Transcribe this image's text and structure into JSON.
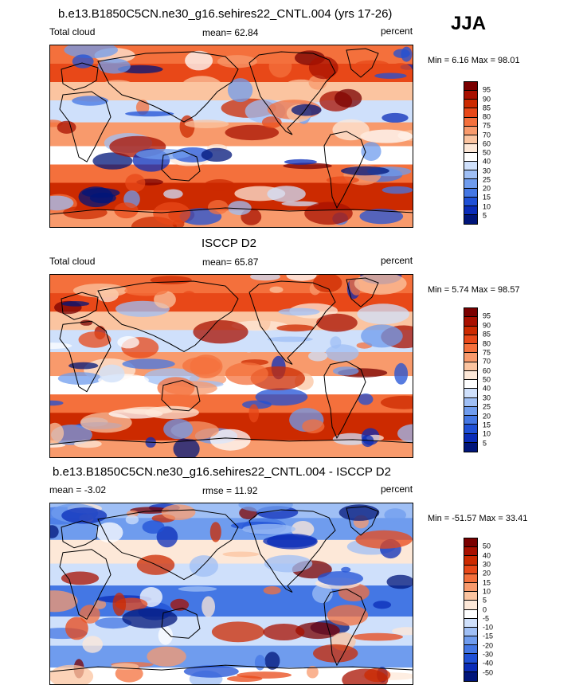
{
  "season": "JJA",
  "panels": [
    {
      "title": "b.e13.B1850C5CN.ne30_g16.sehires22_CNTL.004 (yrs 17-26)",
      "left_label": "Total cloud",
      "center_label": "mean=  62.84",
      "right_label": "percent",
      "minmax": "Min =   6.16 Max =  98.01",
      "map_type": "absolute"
    },
    {
      "title": "ISCCP D2",
      "left_label": "Total cloud",
      "center_label": "mean=  65.87",
      "right_label": "percent",
      "minmax": "Min =   5.74 Max =  98.57",
      "map_type": "absolute"
    },
    {
      "title": "b.e13.B1850C5CN.ne30_g16.sehires22_CNTL.004 - ISCCP D2",
      "left_label": "mean = -3.02",
      "center_label": "rmse =  11.92",
      "right_label": "percent",
      "minmax": "Min = -51.57 Max =  33.41",
      "map_type": "difference"
    }
  ],
  "colorbars": {
    "absolute": {
      "labels": [
        "95",
        "90",
        "85",
        "80",
        "75",
        "70",
        "60",
        "50",
        "40",
        "30",
        "25",
        "20",
        "15",
        "10",
        "5"
      ],
      "colors": [
        "#7a0000",
        "#a81000",
        "#cc2a00",
        "#e84818",
        "#f4703c",
        "#f89a6c",
        "#fbc4a0",
        "#fde8d8",
        "#ffffff",
        "#cfe0fb",
        "#9fbff5",
        "#6f9cee",
        "#4477e4",
        "#1f50d6",
        "#0a2cb8",
        "#00157a"
      ]
    },
    "difference": {
      "labels": [
        "50",
        "40",
        "30",
        "20",
        "15",
        "10",
        "5",
        "0",
        "-5",
        "-10",
        "-15",
        "-20",
        "-30",
        "-40",
        "-50"
      ],
      "colors": [
        "#7a0000",
        "#a81000",
        "#cc2a00",
        "#e84818",
        "#f4703c",
        "#f89a6c",
        "#fbc4a0",
        "#fde8d8",
        "#ffffff",
        "#cfe0fb",
        "#9fbff5",
        "#6f9cee",
        "#4477e4",
        "#1f50d6",
        "#0a2cb8",
        "#00157a"
      ]
    }
  },
  "chart_data": [
    {
      "type": "heatmap",
      "title": "b.e13.B1850C5CN.ne30_g16.sehires22_CNTL.004 (yrs 17-26)",
      "variable": "Total cloud",
      "units": "percent",
      "mean": 62.84,
      "min": 6.16,
      "max": 98.01,
      "levels": [
        5,
        10,
        15,
        20,
        25,
        30,
        40,
        50,
        60,
        70,
        75,
        80,
        85,
        90,
        95
      ]
    },
    {
      "type": "heatmap",
      "title": "ISCCP D2",
      "variable": "Total cloud",
      "units": "percent",
      "mean": 65.87,
      "min": 5.74,
      "max": 98.57,
      "levels": [
        5,
        10,
        15,
        20,
        25,
        30,
        40,
        50,
        60,
        70,
        75,
        80,
        85,
        90,
        95
      ]
    },
    {
      "type": "heatmap",
      "title": "b.e13.B1850C5CN.ne30_g16.sehires22_CNTL.004 - ISCCP D2",
      "units": "percent",
      "mean": -3.02,
      "rmse": 11.92,
      "min": -51.57,
      "max": 33.41,
      "levels": [
        -50,
        -40,
        -30,
        -20,
        -15,
        -10,
        -5,
        0,
        5,
        10,
        15,
        20,
        30,
        40,
        50
      ]
    }
  ]
}
